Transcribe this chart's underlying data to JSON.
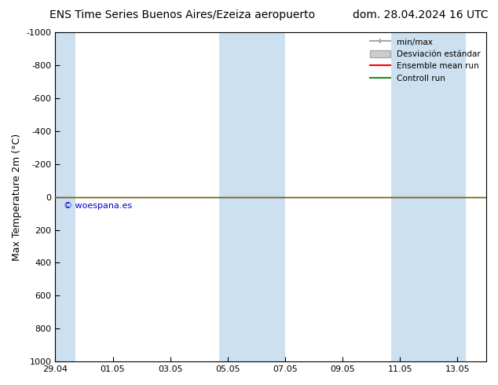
{
  "title_left": "ENS Time Series Buenos Aires/Ezeiza aeropuerto",
  "title_right": "dom. 28.04.2024 16 UTC",
  "ylabel": "Max Temperature 2m (°C)",
  "xtick_labels": [
    "29.04",
    "01.05",
    "03.05",
    "05.05",
    "07.05",
    "09.05",
    "11.05",
    "13.05"
  ],
  "xtick_positions": [
    0,
    2,
    4,
    6,
    8,
    10,
    12,
    14
  ],
  "x_min": 0,
  "x_max": 15,
  "ylim_top": -1000,
  "ylim_bottom": 1000,
  "ytick_positions": [
    -1000,
    -800,
    -600,
    -400,
    -200,
    0,
    200,
    400,
    600,
    800,
    1000
  ],
  "shaded_bands": [
    {
      "x_start": 0,
      "x_end": 0.7,
      "color": "#cce0f0"
    },
    {
      "x_start": 5.7,
      "x_end": 8.0,
      "color": "#cce0f0"
    },
    {
      "x_start": 11.7,
      "x_end": 14.3,
      "color": "#cce0f0"
    }
  ],
  "control_run_color": "#228B22",
  "ensemble_mean_color": "#FF0000",
  "min_max_color": "#aaaaaa",
  "std_dev_color": "#cccccc",
  "watermark_text": "© woespana.es",
  "watermark_color": "#0000CD",
  "background_color": "#ffffff",
  "legend_labels": [
    "min/max",
    "Desviación estándar",
    "Ensemble mean run",
    "Controll run"
  ],
  "font_size_title": 10,
  "font_size_axis": 9,
  "font_size_ticks": 8,
  "font_size_legend": 7.5
}
